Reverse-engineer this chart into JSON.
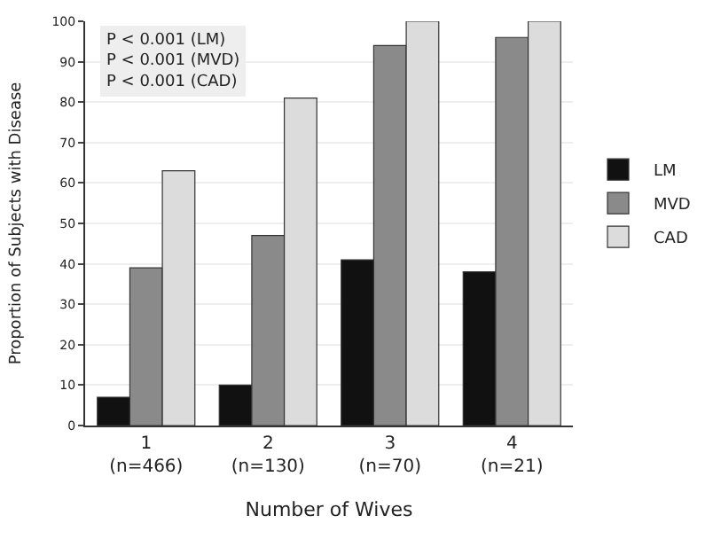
{
  "chart_data": {
    "type": "bar",
    "xlabel": "Number of Wives",
    "ylabel": "Proportion of Subjects with Disease",
    "categories": [
      "1\n(n=466)",
      "2\n(n=130)",
      "3\n(n=70)",
      "4\n(n=21)"
    ],
    "series": [
      {
        "name": "LM",
        "color": "#111111",
        "values": [
          7,
          10,
          41,
          38
        ]
      },
      {
        "name": "MVD",
        "color": "#8a8a8a",
        "values": [
          39,
          47,
          94,
          96
        ]
      },
      {
        "name": "CAD",
        "color": "#dcdcdc",
        "values": [
          63,
          81,
          100,
          100
        ]
      }
    ],
    "ylim": [
      0,
      100
    ],
    "yticks": [
      0,
      10,
      20,
      30,
      40,
      50,
      60,
      70,
      80,
      90,
      100
    ],
    "grid": "y",
    "legend": "right",
    "annotations": [
      "P < 0.001 (LM)",
      "P < 0.001 (MVD)",
      "P < 0.001 (CAD)"
    ]
  }
}
